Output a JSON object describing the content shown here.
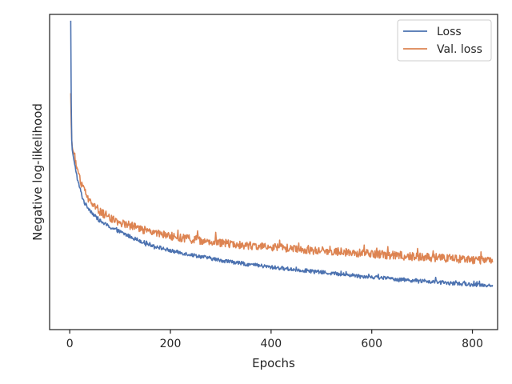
{
  "chart_data": {
    "type": "line",
    "title": "",
    "xlabel": "Epochs",
    "ylabel": "Negative log-likelihood",
    "xlim": [
      -40,
      850
    ],
    "ylim": [
      0,
      1
    ],
    "y_tick_labels_shown": false,
    "x_ticks": [
      0,
      200,
      400,
      600,
      800
    ],
    "x_tick_labels": [
      "0",
      "200",
      "400",
      "600",
      "800"
    ],
    "grid": false,
    "legend_position": "top-right",
    "colors": {
      "Loss": "#4c72b0",
      "Val. loss": "#dd8452"
    },
    "series": [
      {
        "name": "Loss",
        "x": [
          2,
          3,
          4,
          5,
          6,
          8,
          10,
          13,
          16,
          20,
          25,
          30,
          40,
          50,
          60,
          70,
          80,
          100,
          120,
          150,
          175,
          200,
          250,
          300,
          350,
          400,
          450,
          500,
          550,
          600,
          650,
          700,
          750,
          800,
          840
        ],
        "y": [
          0.98,
          0.72,
          0.6,
          0.57,
          0.56,
          0.54,
          0.52,
          0.5,
          0.47,
          0.45,
          0.42,
          0.4,
          0.38,
          0.36,
          0.345,
          0.335,
          0.325,
          0.31,
          0.295,
          0.275,
          0.262,
          0.25,
          0.235,
          0.22,
          0.208,
          0.198,
          0.19,
          0.182,
          0.174,
          0.167,
          0.16,
          0.154,
          0.148,
          0.143,
          0.14
        ]
      },
      {
        "name": "Val. loss",
        "x": [
          2,
          3,
          4,
          5,
          6,
          8,
          10,
          13,
          16,
          20,
          25,
          30,
          40,
          50,
          60,
          70,
          80,
          100,
          120,
          150,
          175,
          200,
          250,
          300,
          350,
          400,
          450,
          500,
          550,
          600,
          650,
          700,
          750,
          800,
          840
        ],
        "y": [
          0.75,
          0.65,
          0.6,
          0.58,
          0.57,
          0.56,
          0.54,
          0.52,
          0.5,
          0.48,
          0.455,
          0.435,
          0.41,
          0.39,
          0.375,
          0.365,
          0.355,
          0.34,
          0.33,
          0.315,
          0.305,
          0.295,
          0.285,
          0.275,
          0.268,
          0.262,
          0.256,
          0.25,
          0.245,
          0.24,
          0.235,
          0.23,
          0.226,
          0.222,
          0.22
        ]
      }
    ]
  }
}
